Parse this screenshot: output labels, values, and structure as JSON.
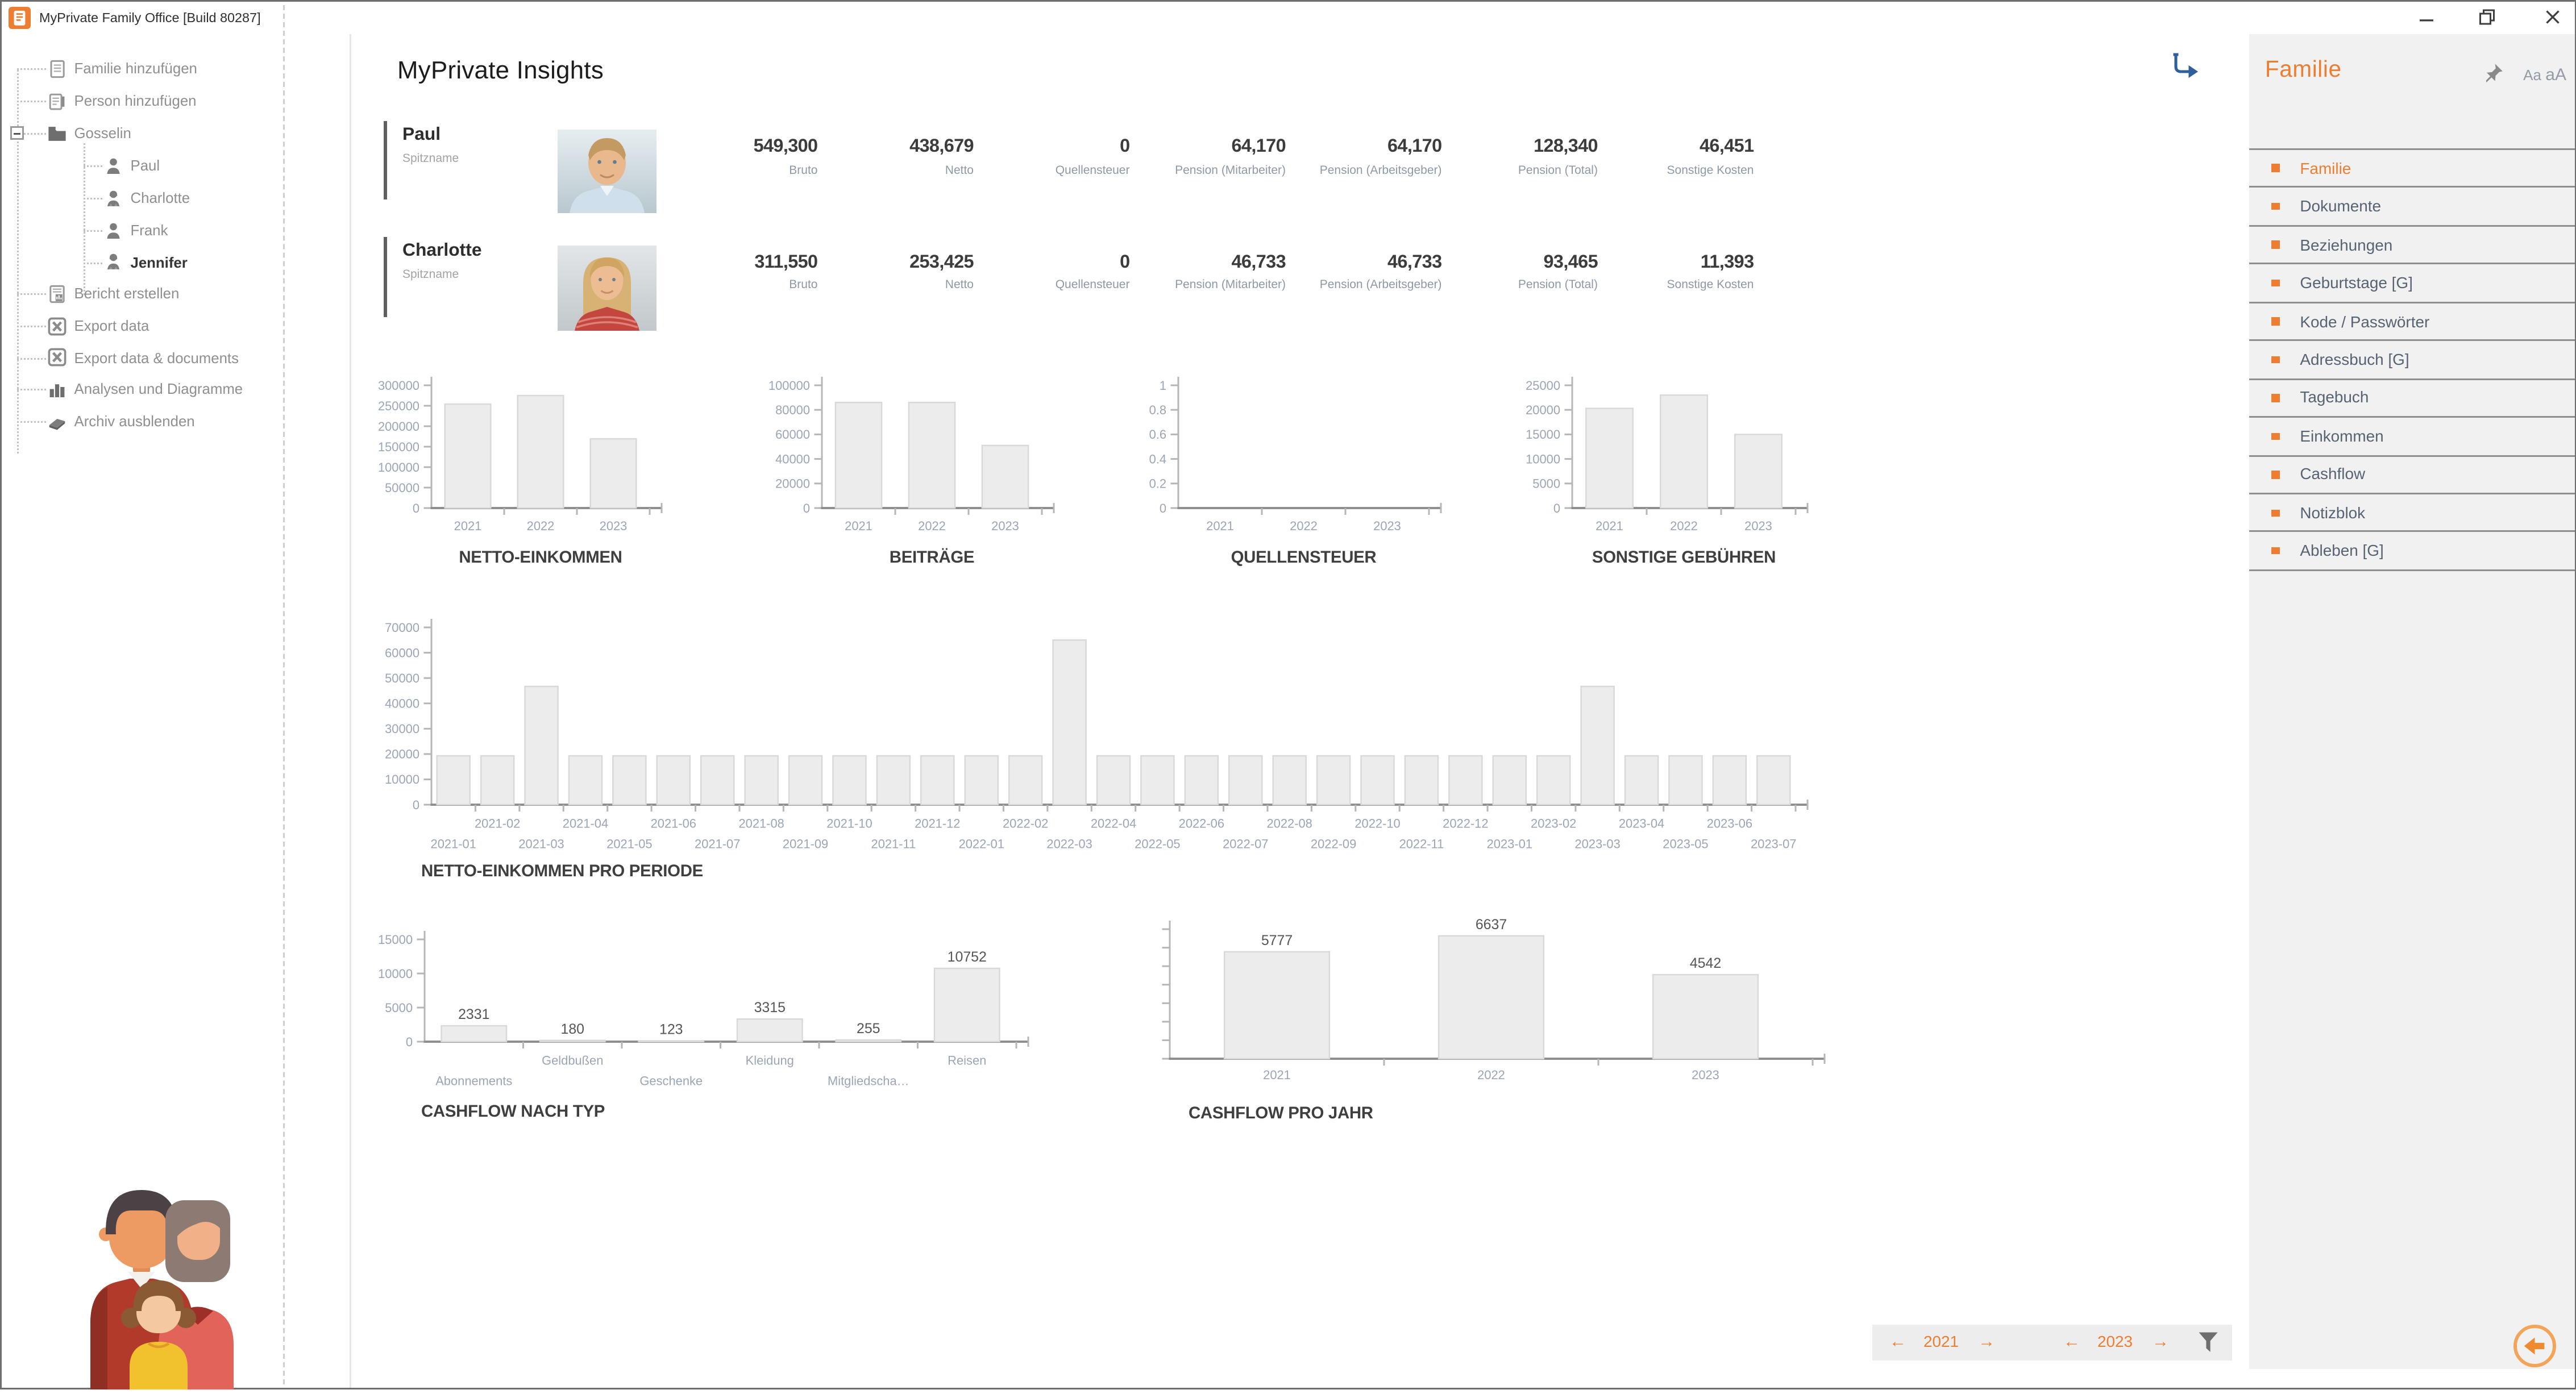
{
  "window": {
    "title": "MyPrivate Family Office [Build 80287]",
    "controls": [
      {
        "name": "minimize-button",
        "icon": "minimize-icon"
      },
      {
        "name": "restore-button",
        "icon": "restore-icon"
      },
      {
        "name": "close-button",
        "icon": "close-icon"
      }
    ]
  },
  "tree": {
    "items": [
      {
        "label": "Familie hinzufügen",
        "icon": "add-family-icon",
        "level": 0
      },
      {
        "label": "Person hinzufügen",
        "icon": "add-person-icon",
        "level": 0
      },
      {
        "label": "Gosselin",
        "icon": "folder-icon",
        "level": 0,
        "expanded": true
      },
      {
        "label": "Paul",
        "icon": "person-male-icon",
        "level": 1
      },
      {
        "label": "Charlotte",
        "icon": "person-female-icon",
        "level": 1
      },
      {
        "label": "Frank",
        "icon": "person-male-icon",
        "level": 1
      },
      {
        "label": "Jennifer",
        "icon": "person-female-icon",
        "level": 1,
        "selected": true
      },
      {
        "label": "Bericht erstellen",
        "icon": "report-icon",
        "level": 0
      },
      {
        "label": "Export data",
        "icon": "excel-icon",
        "level": 0
      },
      {
        "label": "Export data & documents",
        "icon": "excel-icon",
        "level": 0
      },
      {
        "label": "Analysen und Diagramme",
        "icon": "bar-chart-icon",
        "level": 0
      },
      {
        "label": "Archiv ausblenden",
        "icon": "archive-icon",
        "level": 0
      }
    ]
  },
  "main": {
    "title": "MyPrivate Insights",
    "persons": [
      {
        "name": "Paul",
        "name_label": "Spitzname",
        "photo": "man-photo",
        "values": [
          {
            "value": "549,300",
            "label": "Bruto"
          },
          {
            "value": "438,679",
            "label": "Netto"
          },
          {
            "value": "0",
            "label": "Quellensteuer"
          },
          {
            "value": "64,170",
            "label": "Pension (Mitarbeiter)"
          },
          {
            "value": "64,170",
            "label": "Pension (Arbeitsgeber)"
          },
          {
            "value": "128,340",
            "label": "Pension (Total)"
          },
          {
            "value": "46,451",
            "label": "Sonstige Kosten"
          }
        ]
      },
      {
        "name": "Charlotte",
        "name_label": "Spitzname",
        "photo": "woman-photo",
        "values": [
          {
            "value": "311,550",
            "label": "Bruto"
          },
          {
            "value": "253,425",
            "label": "Netto"
          },
          {
            "value": "0",
            "label": "Quellensteuer"
          },
          {
            "value": "46,733",
            "label": "Pension (Mitarbeiter)"
          },
          {
            "value": "46,733",
            "label": "Pension (Arbeitsgeber)"
          },
          {
            "value": "93,465",
            "label": "Pension (Total)"
          },
          {
            "value": "11,393",
            "label": "Sonstige Kosten"
          }
        ]
      }
    ]
  },
  "chart_data": [
    {
      "id": "netto",
      "type": "bar",
      "title": "NETTO-EINKOMMEN",
      "categories": [
        "2021",
        "2022",
        "2023"
      ],
      "values": [
        254000,
        275000,
        169000
      ],
      "ylim": [
        0,
        300000
      ],
      "ystep": 50000,
      "y_labels": true
    },
    {
      "id": "beitraege",
      "type": "bar",
      "title": "BEITRÄGE",
      "categories": [
        "2021",
        "2022",
        "2023"
      ],
      "values": [
        86000,
        86000,
        51000
      ],
      "ylim": [
        0,
        100000
      ],
      "ystep": 20000,
      "y_labels": true
    },
    {
      "id": "quellensteuer",
      "type": "bar",
      "title": "QUELLENSTEUER",
      "categories": [
        "2021",
        "2022",
        "2023"
      ],
      "values": [
        0,
        0,
        0
      ],
      "ylim": [
        0,
        1
      ],
      "ystep": 0.2,
      "y_labels": true
    },
    {
      "id": "sonstige",
      "type": "bar",
      "title": "SONSTIGE GEBÜHREN",
      "categories": [
        "2021",
        "2022",
        "2023"
      ],
      "values": [
        20300,
        23000,
        15000
      ],
      "ylim": [
        0,
        25000
      ],
      "ystep": 5000,
      "y_labels": true
    },
    {
      "id": "periode",
      "type": "bar",
      "title": "NETTO-EINKOMMEN PRO PERIODE",
      "categories": [
        "2021-01",
        "2021-02",
        "2021-03",
        "2021-04",
        "2021-05",
        "2021-06",
        "2021-07",
        "2021-08",
        "2021-09",
        "2021-10",
        "2021-11",
        "2021-12",
        "2022-01",
        "2022-02",
        "2022-03",
        "2022-04",
        "2022-05",
        "2022-06",
        "2022-07",
        "2022-08",
        "2022-09",
        "2022-10",
        "2022-11",
        "2022-12",
        "2023-01",
        "2023-02",
        "2023-03",
        "2023-04",
        "2023-05",
        "2023-06",
        "2023-07"
      ],
      "values": [
        19300,
        19300,
        46700,
        19300,
        19300,
        19300,
        19300,
        19300,
        19300,
        19300,
        19300,
        19300,
        19300,
        19300,
        65000,
        19300,
        19300,
        19300,
        19300,
        19300,
        19300,
        19300,
        19300,
        19300,
        19300,
        19300,
        46700,
        19300,
        19300,
        19300,
        19300
      ],
      "ylim": [
        0,
        70000
      ],
      "ystep": 10000,
      "y_labels": true,
      "stagger": true
    },
    {
      "id": "cashflow_typ",
      "type": "bar",
      "title": "CASHFLOW NACH TYP",
      "categories": [
        "Abonnements",
        "Geldbußen",
        "Geschenke",
        "Kleidung",
        "Mitgliedscha…",
        "Reisen"
      ],
      "values": [
        2331,
        180,
        123,
        3315,
        255,
        10752
      ],
      "ylim": [
        0,
        15000
      ],
      "ystep": 5000,
      "y_labels": true,
      "stagger": true,
      "value_labels": true
    },
    {
      "id": "cashflow_jahr",
      "type": "bar",
      "title": "CASHFLOW PRO JAHR",
      "categories": [
        "2021",
        "2022",
        "2023"
      ],
      "values": [
        5777,
        6637,
        4542
      ],
      "ylim": [
        0,
        7000
      ],
      "ystep": 1000,
      "y_labels": false,
      "value_labels": true
    }
  ],
  "sidebar": {
    "header": "Familie",
    "font_small": "Aa",
    "font_large": "aA",
    "selected": "Familie",
    "items": [
      "Familie",
      "Dokumente",
      "Beziehungen",
      "Geburtstage [G]",
      "Kode / Passwörter",
      "Adressbuch [G]",
      "Tagebuch",
      "Einkommen",
      "Cashflow",
      "Notizblok",
      "Ableben [G]"
    ]
  },
  "year_nav": {
    "from_year": "2021",
    "to_year": "2023",
    "prev_icon": "←",
    "next_icon": "→"
  },
  "icons": {
    "pin-icon": "pushpin",
    "filter-icon": "funnel",
    "back-icon": "circled-left-arrow",
    "redirect-icon": "elbow-arrow",
    "family-illustration": "flat family drawing"
  },
  "colors": {
    "accent": "#ED7D31",
    "bar_fill": "#ECECEC",
    "bar_stroke": "#D8D8D8",
    "axis": "#B6B6B6",
    "tick_label": "#9AA5B5",
    "sidebar_bg": "#F1F1F1",
    "sidebar_text": "#566372",
    "value_text": "#3C3C3C"
  }
}
